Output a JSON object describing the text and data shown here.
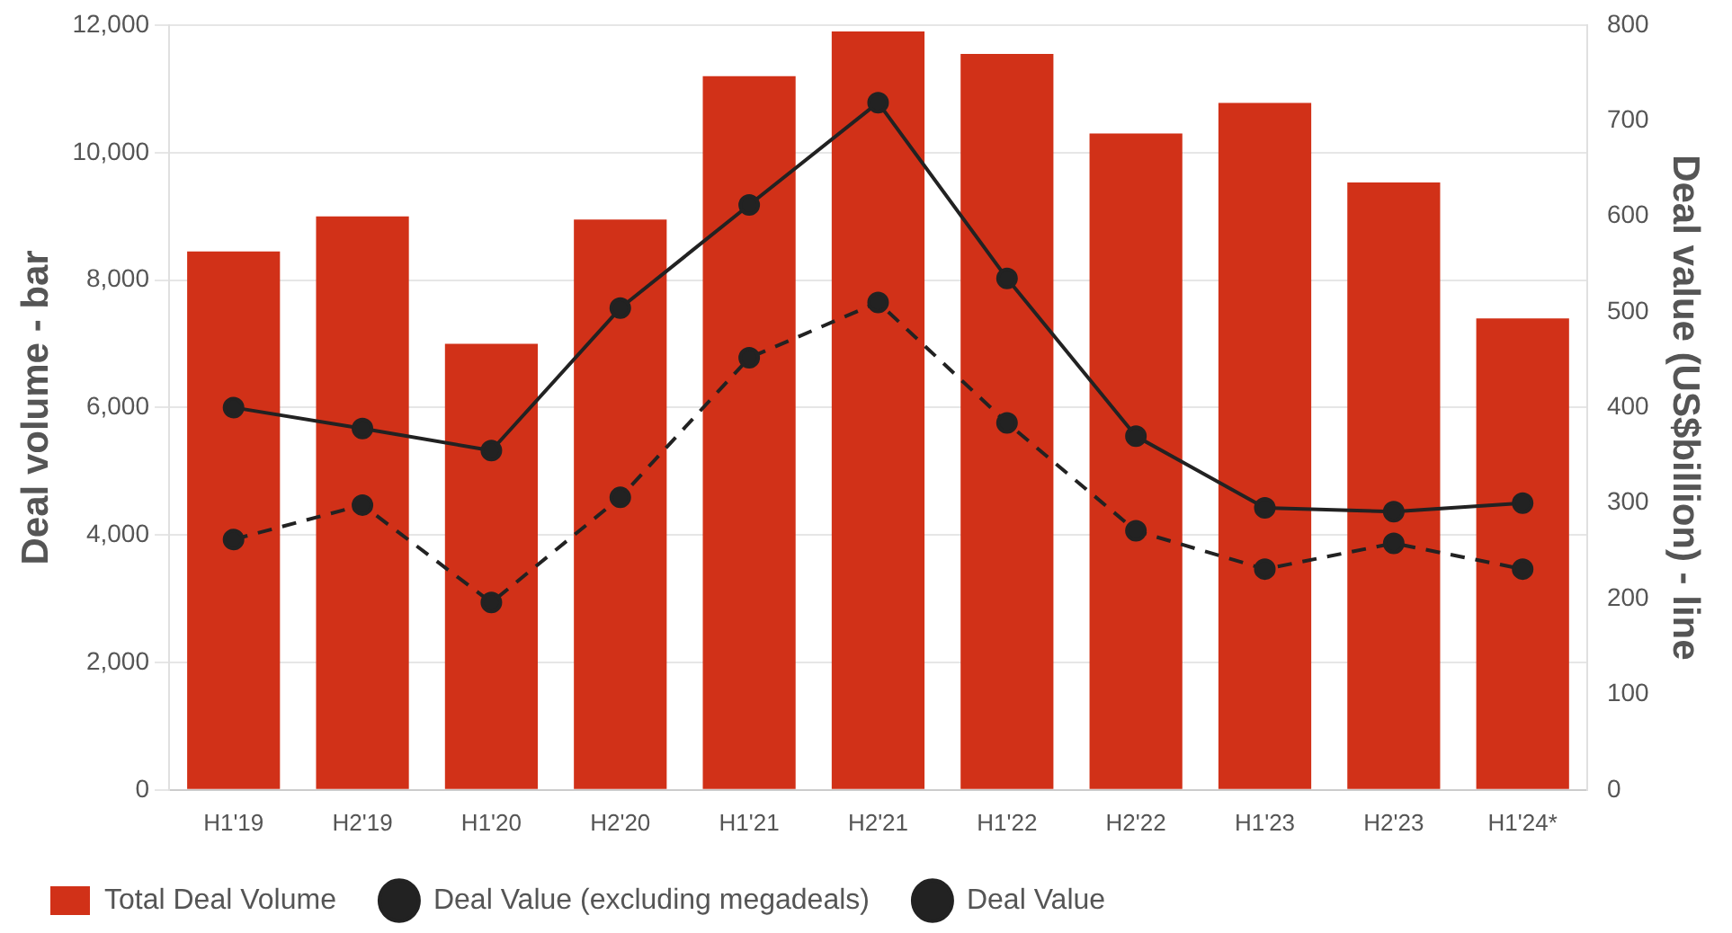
{
  "chart_data": {
    "type": "bar",
    "ylabel": "Deal volume - bar",
    "y2label": "Deal value (US$billion) - line",
    "categories": [
      "H1'19",
      "H2'19",
      "H1'20",
      "H2'20",
      "H1'21",
      "H2'21",
      "H1'22",
      "H2'22",
      "H1'23",
      "H2'23",
      "H1'24*"
    ],
    "series": [
      {
        "name": "Total Deal Volume",
        "color": "#d13118",
        "values": [
          8450,
          9000,
          7000,
          8950,
          11200,
          11900,
          11550,
          10300,
          10780,
          9530,
          7400
        ]
      },
      {
        "name": "Deal Value (excluding megadeals)",
        "type": "line",
        "axis": "y2",
        "line_style": "dashed",
        "color": "#222222",
        "values": [
          262,
          298,
          196,
          306,
          452,
          510,
          384,
          271,
          231,
          258,
          231
        ]
      },
      {
        "name": "Deal Value",
        "type": "line",
        "axis": "y2",
        "line_style": "solid",
        "color": "#222222",
        "values": [
          400,
          378,
          355,
          504,
          612,
          719,
          535,
          370,
          295,
          291,
          300
        ]
      }
    ],
    "ylim": [
      0,
      12000
    ],
    "yticks": [
      0,
      {
        "value": 2000,
        "label": "2,000"
      },
      {
        "value": 4000,
        "label": "4,000"
      },
      {
        "value": 6000,
        "label": "6,000"
      },
      {
        "value": 8000,
        "label": "8,000"
      },
      {
        "value": 10000,
        "label": "10,000"
      },
      {
        "value": 12000,
        "label": "12,000"
      }
    ],
    "y2lim": [
      0,
      800
    ],
    "y2ticks": [
      0,
      100,
      200,
      300,
      400,
      500,
      600,
      700,
      800
    ],
    "grid": "y",
    "legend": "bottom left",
    "marker": "circle"
  }
}
